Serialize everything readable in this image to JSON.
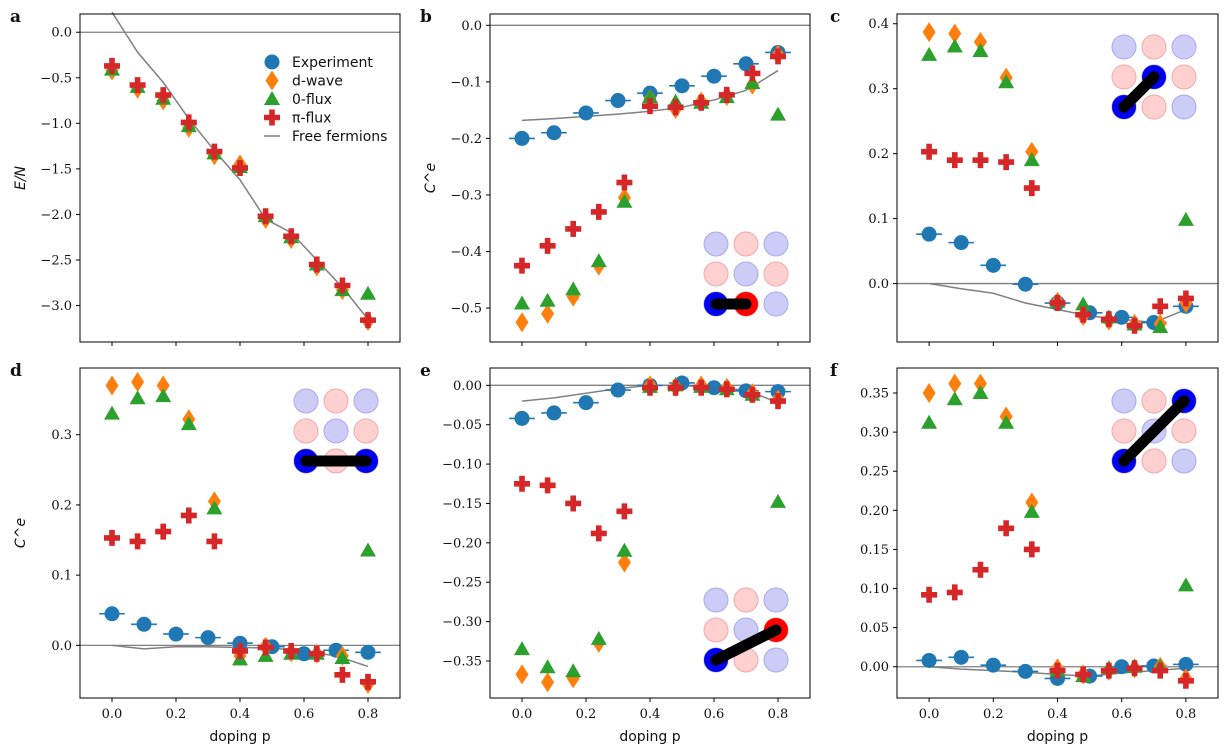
{
  "figure": {
    "x_axis_label": "doping p",
    "categories_x": [
      0.0,
      0.2,
      0.4,
      0.6,
      0.8
    ]
  },
  "colors": {
    "experiment": "#1f77b4",
    "dwave": "#ff7f0e",
    "zeroflux": "#2ca02c",
    "piflux": "#d62728",
    "free": "#808080",
    "site_blue": "#0000ee",
    "site_red": "#ff0000",
    "site_blue_faint": "#ccccf7",
    "site_red_faint": "#ffd0d0"
  },
  "legend": {
    "items": [
      {
        "key": "experiment",
        "label": "Experiment"
      },
      {
        "key": "dwave",
        "label": "d-wave"
      },
      {
        "key": "zeroflux",
        "label": "0-flux"
      },
      {
        "key": "piflux",
        "label": "π-flux"
      },
      {
        "key": "free",
        "label": "Free fermions"
      }
    ]
  },
  "chart_data": [
    {
      "panel": "a",
      "type": "scatter",
      "ylabel": "E/N",
      "xlabel": "",
      "xlim": [
        -0.1,
        0.9
      ],
      "ylim": [
        -3.4,
        0.2
      ],
      "yticks": [
        0.0,
        -0.5,
        -1.0,
        -1.5,
        -2.0,
        -2.5,
        -3.0
      ],
      "ytick_labels": [
        "0.0",
        "−0.5",
        "−1.0",
        "−1.5",
        "−2.0",
        "−2.5",
        "−3.0"
      ],
      "xticks": [
        0.0,
        0.2,
        0.4,
        0.6,
        0.8
      ],
      "xtick_labels": [],
      "hline": 0.0,
      "free": {
        "x": [
          0.0,
          0.08,
          0.16,
          0.24,
          0.32,
          0.4,
          0.48,
          0.56,
          0.64,
          0.72,
          0.8
        ],
        "y": [
          0.22,
          -0.22,
          -0.55,
          -0.95,
          -1.3,
          -1.62,
          -2.05,
          -2.2,
          -2.5,
          -2.8,
          -3.15
        ]
      },
      "series": [
        {
          "key": "dwave",
          "x": [
            0.0,
            0.08,
            0.16,
            0.24,
            0.32,
            0.4,
            0.48,
            0.56,
            0.64,
            0.72,
            0.8
          ],
          "y": [
            -0.42,
            -0.62,
            -0.75,
            -1.05,
            -1.35,
            -1.45,
            -2.05,
            -2.27,
            -2.57,
            -2.83,
            -3.17
          ]
        },
        {
          "key": "zeroflux",
          "x": [
            0.0,
            0.08,
            0.16,
            0.24,
            0.32,
            0.4,
            0.48,
            0.56,
            0.64,
            0.72,
            0.8
          ],
          "y": [
            -0.41,
            -0.6,
            -0.73,
            -1.03,
            -1.33,
            -1.48,
            -2.02,
            -2.25,
            -2.55,
            -2.83,
            -2.87
          ]
        },
        {
          "key": "piflux",
          "x": [
            0.0,
            0.08,
            0.16,
            0.24,
            0.32,
            0.4,
            0.48,
            0.56,
            0.64,
            0.72,
            0.8
          ],
          "y": [
            -0.37,
            -0.58,
            -0.69,
            -0.99,
            -1.31,
            -1.49,
            -2.02,
            -2.24,
            -2.55,
            -2.78,
            -3.16
          ]
        }
      ],
      "inset": null
    },
    {
      "panel": "b",
      "type": "scatter",
      "ylabel": "C^e",
      "xlabel": "",
      "xlim": [
        -0.1,
        0.9
      ],
      "ylim": [
        -0.56,
        0.02
      ],
      "yticks": [
        0.0,
        -0.1,
        -0.2,
        -0.3,
        -0.4,
        -0.5
      ],
      "ytick_labels": [
        "0.0",
        "−0.1",
        "−0.2",
        "−0.3",
        "−0.4",
        "−0.5"
      ],
      "xticks": [
        0.0,
        0.2,
        0.4,
        0.6,
        0.8
      ],
      "xtick_labels": [],
      "hline": 0.0,
      "free": {
        "x": [
          0.0,
          0.1,
          0.2,
          0.3,
          0.4,
          0.5,
          0.6,
          0.7,
          0.8
        ],
        "y": [
          -0.168,
          -0.165,
          -0.161,
          -0.157,
          -0.152,
          -0.145,
          -0.132,
          -0.115,
          -0.08
        ]
      },
      "experiment": {
        "x": [
          0.0,
          0.1,
          0.2,
          0.3,
          0.4,
          0.5,
          0.6,
          0.7,
          0.8
        ],
        "y": [
          -0.2,
          -0.19,
          -0.155,
          -0.133,
          -0.12,
          -0.107,
          -0.09,
          -0.068,
          -0.048
        ],
        "xerr": 0.04
      },
      "series": [
        {
          "key": "dwave",
          "x": [
            0.0,
            0.08,
            0.16,
            0.24,
            0.32,
            0.4,
            0.48,
            0.56,
            0.64,
            0.72,
            0.8
          ],
          "y": [
            -0.525,
            -0.51,
            -0.48,
            -0.425,
            -0.305,
            -0.13,
            -0.148,
            -0.135,
            -0.125,
            -0.105,
            -0.052
          ]
        },
        {
          "key": "zeroflux",
          "x": [
            0.0,
            0.08,
            0.16,
            0.24,
            0.32,
            0.4,
            0.48,
            0.56,
            0.64,
            0.72,
            0.8
          ],
          "y": [
            -0.492,
            -0.487,
            -0.467,
            -0.417,
            -0.312,
            -0.127,
            -0.135,
            -0.137,
            -0.127,
            -0.102,
            -0.158
          ]
        },
        {
          "key": "piflux",
          "x": [
            0.0,
            0.08,
            0.16,
            0.24,
            0.32,
            0.4,
            0.48,
            0.56,
            0.64,
            0.72,
            0.8
          ],
          "y": [
            -0.425,
            -0.39,
            -0.36,
            -0.33,
            -0.278,
            -0.143,
            -0.145,
            -0.137,
            -0.123,
            -0.085,
            -0.055
          ]
        }
      ],
      "inset": {
        "corner": "bottom-right",
        "bond": [
          [
            0,
            2
          ],
          [
            1,
            2
          ]
        ],
        "endpoints": [
          "blue",
          "red"
        ]
      }
    },
    {
      "panel": "c",
      "type": "scatter",
      "ylabel": "",
      "xlabel": "",
      "xlim": [
        -0.1,
        0.9
      ],
      "ylim": [
        -0.09,
        0.415
      ],
      "yticks": [
        0.0,
        0.1,
        0.2,
        0.3,
        0.4
      ],
      "ytick_labels": [
        "0.0",
        "0.1",
        "0.2",
        "0.3",
        "0.4"
      ],
      "xticks": [
        0.0,
        0.2,
        0.4,
        0.6,
        0.8
      ],
      "xtick_labels": [],
      "hline": 0.0,
      "free": {
        "x": [
          0.0,
          0.1,
          0.2,
          0.3,
          0.4,
          0.5,
          0.6,
          0.7,
          0.8
        ],
        "y": [
          0.0,
          -0.008,
          -0.015,
          -0.03,
          -0.04,
          -0.05,
          -0.055,
          -0.06,
          -0.04
        ]
      },
      "experiment": {
        "x": [
          0.0,
          0.1,
          0.2,
          0.3,
          0.4,
          0.5,
          0.6,
          0.7,
          0.8
        ],
        "y": [
          0.076,
          0.063,
          0.028,
          -0.001,
          -0.03,
          -0.045,
          -0.052,
          -0.06,
          -0.035
        ],
        "xerr": 0.04
      },
      "series": [
        {
          "key": "dwave",
          "x": [
            0.0,
            0.08,
            0.16,
            0.24,
            0.32,
            0.4,
            0.48,
            0.56,
            0.64,
            0.72,
            0.8
          ],
          "y": [
            0.387,
            0.385,
            0.372,
            0.317,
            0.203,
            -0.028,
            -0.05,
            -0.057,
            -0.062,
            -0.062,
            -0.03
          ]
        },
        {
          "key": "zeroflux",
          "x": [
            0.0,
            0.08,
            0.16,
            0.24,
            0.32,
            0.4,
            0.48,
            0.56,
            0.64,
            0.72,
            0.8
          ],
          "y": [
            0.352,
            0.365,
            0.358,
            0.31,
            0.19,
            -0.028,
            -0.032,
            -0.052,
            -0.063,
            -0.067,
            0.098
          ]
        },
        {
          "key": "piflux",
          "x": [
            0.0,
            0.08,
            0.16,
            0.24,
            0.32,
            0.4,
            0.48,
            0.56,
            0.64,
            0.72,
            0.8
          ],
          "y": [
            0.203,
            0.19,
            0.19,
            0.187,
            0.147,
            -0.03,
            -0.048,
            -0.055,
            -0.065,
            -0.035,
            -0.023
          ]
        }
      ],
      "inset": {
        "corner": "top-right",
        "bond": [
          [
            0,
            2
          ],
          [
            1,
            1
          ]
        ],
        "endpoints": [
          "blue",
          "blue"
        ]
      }
    },
    {
      "panel": "d",
      "type": "scatter",
      "ylabel": "C^e",
      "xlabel": "doping p",
      "xlim": [
        -0.1,
        0.9
      ],
      "ylim": [
        -0.075,
        0.395
      ],
      "yticks": [
        0.0,
        0.1,
        0.2,
        0.3
      ],
      "ytick_labels": [
        "0.0",
        "0.1",
        "0.2",
        "0.3"
      ],
      "xticks": [
        0.0,
        0.2,
        0.4,
        0.6,
        0.8
      ],
      "xtick_labels": [
        "0.0",
        "0.2",
        "0.4",
        "0.6",
        "0.8"
      ],
      "hline": 0.0,
      "free": {
        "x": [
          0.0,
          0.1,
          0.2,
          0.3,
          0.4,
          0.5,
          0.6,
          0.7,
          0.8
        ],
        "y": [
          0.0,
          -0.005,
          -0.002,
          -0.002,
          -0.003,
          -0.004,
          -0.008,
          -0.015,
          -0.03
        ]
      },
      "experiment": {
        "x": [
          0.0,
          0.1,
          0.2,
          0.3,
          0.4,
          0.5,
          0.6,
          0.7,
          0.8
        ],
        "y": [
          0.045,
          0.03,
          0.016,
          0.011,
          0.003,
          -0.002,
          -0.012,
          -0.007,
          -0.01
        ],
        "xerr": 0.04
      },
      "series": [
        {
          "key": "dwave",
          "x": [
            0.0,
            0.08,
            0.16,
            0.24,
            0.32,
            0.4,
            0.48,
            0.56,
            0.64,
            0.72,
            0.8
          ],
          "y": [
            0.37,
            0.375,
            0.37,
            0.322,
            0.205,
            -0.015,
            -0.002,
            -0.01,
            -0.012,
            -0.015,
            -0.055
          ]
        },
        {
          "key": "zeroflux",
          "x": [
            0.0,
            0.08,
            0.16,
            0.24,
            0.32,
            0.4,
            0.48,
            0.56,
            0.64,
            0.72,
            0.8
          ],
          "y": [
            0.33,
            0.352,
            0.355,
            0.315,
            0.195,
            -0.02,
            -0.015,
            -0.012,
            -0.012,
            -0.018,
            0.135
          ]
        },
        {
          "key": "piflux",
          "x": [
            0.0,
            0.08,
            0.16,
            0.24,
            0.32,
            0.4,
            0.48,
            0.56,
            0.64,
            0.72,
            0.8
          ],
          "y": [
            0.153,
            0.148,
            0.162,
            0.185,
            0.148,
            -0.008,
            -0.003,
            -0.008,
            -0.012,
            -0.042,
            -0.052
          ]
        }
      ],
      "inset": {
        "corner": "top-right",
        "bond": [
          [
            0,
            2
          ],
          [
            2,
            2
          ]
        ],
        "endpoints": [
          "blue",
          "blue"
        ]
      }
    },
    {
      "panel": "e",
      "type": "scatter",
      "ylabel": "",
      "xlabel": "doping p",
      "xlim": [
        -0.1,
        0.9
      ],
      "ylim": [
        -0.397,
        0.022
      ],
      "yticks": [
        0.0,
        -0.05,
        -0.1,
        -0.15,
        -0.2,
        -0.25,
        -0.3,
        -0.35
      ],
      "ytick_labels": [
        "0.00",
        "−0.05",
        "−0.10",
        "−0.15",
        "−0.20",
        "−0.25",
        "−0.30",
        "−0.35"
      ],
      "xticks": [
        0.0,
        0.2,
        0.4,
        0.6,
        0.8
      ],
      "xtick_labels": [
        "0.0",
        "0.2",
        "0.4",
        "0.6",
        "0.8"
      ],
      "hline": 0.0,
      "free": {
        "x": [
          0.0,
          0.1,
          0.2,
          0.3,
          0.4,
          0.5,
          0.6,
          0.7,
          0.8
        ],
        "y": [
          -0.02,
          -0.016,
          -0.01,
          -0.004,
          0.0,
          0.0,
          -0.003,
          -0.006,
          -0.022
        ]
      },
      "experiment": {
        "x": [
          0.0,
          0.1,
          0.2,
          0.3,
          0.4,
          0.5,
          0.6,
          0.7,
          0.8
        ],
        "y": [
          -0.042,
          -0.035,
          -0.022,
          -0.006,
          0.0,
          0.003,
          -0.003,
          -0.007,
          -0.008
        ],
        "xerr": 0.04
      },
      "series": [
        {
          "key": "dwave",
          "x": [
            0.0,
            0.08,
            0.16,
            0.24,
            0.32,
            0.4,
            0.48,
            0.56,
            0.64,
            0.72,
            0.8
          ],
          "y": [
            -0.367,
            -0.377,
            -0.372,
            -0.327,
            -0.225,
            0.0,
            -0.002,
            0.0,
            -0.003,
            -0.01,
            -0.018
          ]
        },
        {
          "key": "zeroflux",
          "x": [
            0.0,
            0.08,
            0.16,
            0.24,
            0.32,
            0.4,
            0.48,
            0.56,
            0.64,
            0.72,
            0.8
          ],
          "y": [
            -0.335,
            -0.358,
            -0.363,
            -0.322,
            -0.21,
            -0.002,
            0.0,
            -0.002,
            -0.005,
            -0.012,
            -0.148
          ]
        },
        {
          "key": "piflux",
          "x": [
            0.0,
            0.08,
            0.16,
            0.24,
            0.32,
            0.4,
            0.48,
            0.56,
            0.64,
            0.72,
            0.8
          ],
          "y": [
            -0.125,
            -0.127,
            -0.15,
            -0.188,
            -0.16,
            -0.003,
            -0.003,
            -0.003,
            -0.005,
            -0.012,
            -0.02
          ]
        }
      ],
      "inset": {
        "corner": "bottom-right",
        "bond": [
          [
            0,
            2
          ],
          [
            2,
            1
          ]
        ],
        "endpoints": [
          "blue",
          "red"
        ]
      }
    },
    {
      "panel": "f",
      "type": "scatter",
      "ylabel": "",
      "xlabel": "doping p",
      "xlim": [
        -0.1,
        0.9
      ],
      "ylim": [
        -0.04,
        0.382
      ],
      "yticks": [
        0.0,
        0.05,
        0.1,
        0.15,
        0.2,
        0.25,
        0.3,
        0.35
      ],
      "ytick_labels": [
        "0.00",
        "0.05",
        "0.10",
        "0.15",
        "0.20",
        "0.25",
        "0.30",
        "0.35"
      ],
      "xticks": [
        0.0,
        0.2,
        0.4,
        0.6,
        0.8
      ],
      "xtick_labels": [
        "0.0",
        "0.2",
        "0.4",
        "0.6",
        "0.8"
      ],
      "hline": 0.0,
      "free": {
        "x": [
          0.0,
          0.1,
          0.2,
          0.3,
          0.4,
          0.5,
          0.6,
          0.7,
          0.8
        ],
        "y": [
          0.0,
          -0.003,
          -0.005,
          -0.007,
          -0.01,
          -0.012,
          -0.008,
          -0.005,
          -0.002
        ]
      },
      "experiment": {
        "x": [
          0.0,
          0.1,
          0.2,
          0.3,
          0.4,
          0.5,
          0.6,
          0.7,
          0.8
        ],
        "y": [
          0.008,
          0.012,
          0.002,
          -0.006,
          -0.015,
          -0.012,
          0.0,
          0.001,
          0.003
        ],
        "xerr": 0.04
      },
      "series": [
        {
          "key": "dwave",
          "x": [
            0.0,
            0.08,
            0.16,
            0.24,
            0.32,
            0.4,
            0.48,
            0.56,
            0.64,
            0.72,
            0.8
          ],
          "y": [
            0.35,
            0.362,
            0.362,
            0.32,
            0.21,
            -0.002,
            -0.01,
            -0.005,
            -0.002,
            0.0,
            -0.015
          ]
        },
        {
          "key": "zeroflux",
          "x": [
            0.0,
            0.08,
            0.16,
            0.24,
            0.32,
            0.4,
            0.48,
            0.56,
            0.64,
            0.72,
            0.8
          ],
          "y": [
            0.312,
            0.342,
            0.35,
            0.312,
            0.198,
            -0.005,
            -0.012,
            -0.002,
            0.0,
            0.0,
            0.104
          ]
        },
        {
          "key": "piflux",
          "x": [
            0.0,
            0.08,
            0.16,
            0.24,
            0.32,
            0.4,
            0.48,
            0.56,
            0.64,
            0.72,
            0.8
          ],
          "y": [
            0.092,
            0.095,
            0.124,
            0.177,
            0.15,
            -0.005,
            -0.01,
            -0.005,
            -0.002,
            -0.005,
            -0.018
          ]
        }
      ],
      "inset": {
        "corner": "top-right",
        "bond": [
          [
            0,
            2
          ],
          [
            2,
            0
          ]
        ],
        "endpoints": [
          "blue",
          "blue"
        ]
      }
    }
  ]
}
